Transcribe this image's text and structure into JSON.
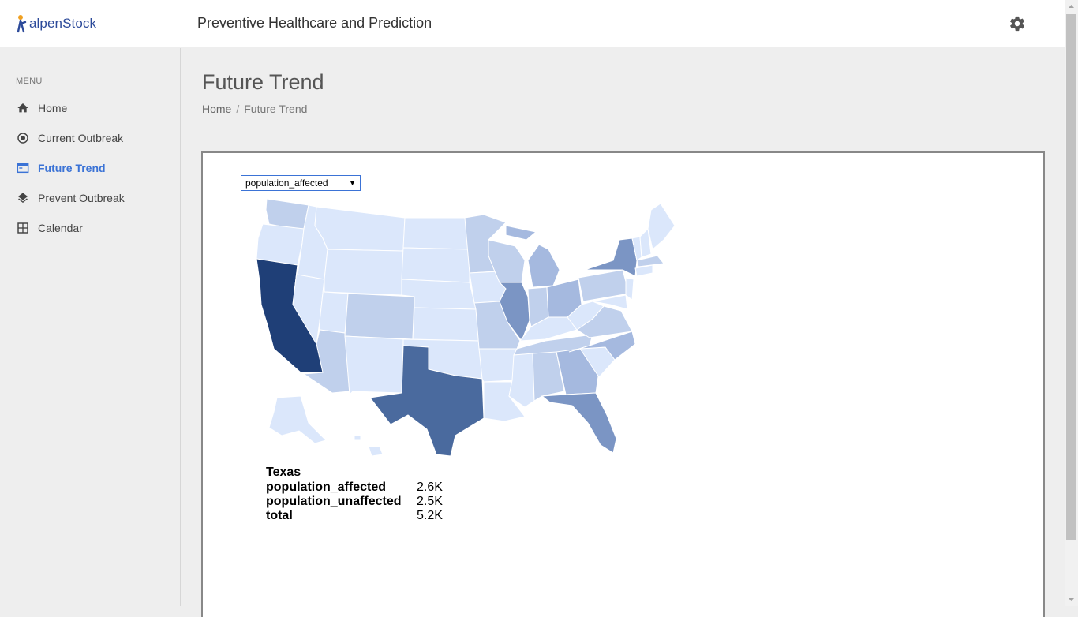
{
  "header": {
    "logo_text": "alpenStock",
    "title": "Preventive Healthcare and Prediction",
    "settings_icon": "gear-icon"
  },
  "sidebar": {
    "menu_label": "MENU",
    "items": [
      {
        "label": "Home",
        "icon": "home-icon",
        "active": false
      },
      {
        "label": "Current Outbreak",
        "icon": "target-icon",
        "active": false
      },
      {
        "label": "Future Trend",
        "icon": "browser-icon",
        "active": true
      },
      {
        "label": "Prevent Outbreak",
        "icon": "layers-icon",
        "active": false
      },
      {
        "label": "Calendar",
        "icon": "grid-icon",
        "active": false
      }
    ]
  },
  "page": {
    "title": "Future Trend",
    "breadcrumb": [
      "Home",
      "Future Trend"
    ],
    "breadcrumb_sep": "/"
  },
  "map": {
    "metric_selected": "population_affected",
    "color_scale": [
      "#dbe7fb",
      "#c0d0ec",
      "#a5b9df",
      "#7b95c4",
      "#4a6a9e",
      "#1f3f77"
    ],
    "tooltip": {
      "state": "Texas",
      "rows": [
        {
          "key": "population_affected",
          "value": "2.6K"
        },
        {
          "key": "population_unaffected",
          "value": "2.5K"
        },
        {
          "key": "total",
          "value": "5.2K"
        }
      ]
    }
  },
  "colors": {
    "accent": "#3b73d6",
    "logo": "#2c4a9a"
  }
}
